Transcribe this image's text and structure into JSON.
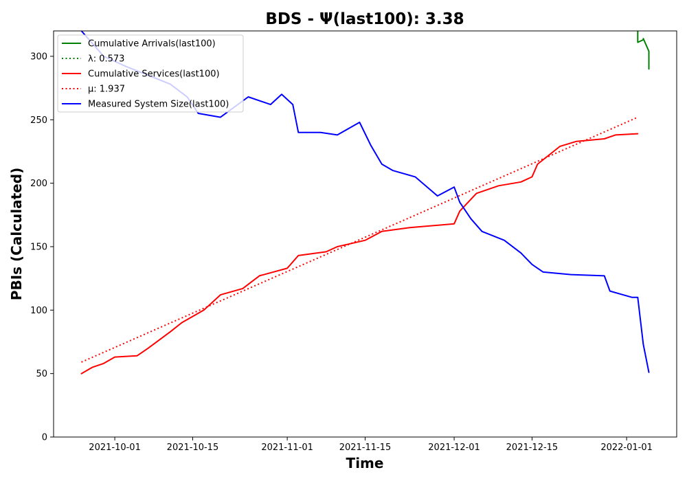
{
  "chart_data": {
    "type": "line",
    "title": "BDS -  Ψ(last100): 3.38",
    "xlabel": "Time",
    "ylabel": "PBIs (Calculated)",
    "ylim": [
      0,
      320
    ],
    "xlim": [
      "2021-09-20",
      "2022-01-10"
    ],
    "yticks": [
      0,
      50,
      100,
      150,
      200,
      250,
      300
    ],
    "xticks": [
      "2021-10-01",
      "2021-10-15",
      "2021-11-01",
      "2021-11-15",
      "2021-12-01",
      "2021-12-15",
      "2022-01-01"
    ],
    "grid": false,
    "legend_position": "top-left",
    "series": [
      {
        "name": "Cumulative Arrivals(last100)",
        "color": "#008000",
        "style": "solid",
        "x": [
          "2022-01-03",
          "2022-01-03",
          "2022-01-03",
          "2022-01-04",
          "2022-01-04",
          "2022-01-05",
          "2022-01-05",
          "2022-01-05"
        ],
        "y": [
          320,
          318,
          311,
          313,
          314,
          304,
          297,
          290
        ]
      },
      {
        "name": "λ: 0.573",
        "color": "#008000",
        "style": "dotted",
        "x": [],
        "y": []
      },
      {
        "name": "Cumulative Services(last100)",
        "color": "#ff0000",
        "style": "solid",
        "x": [
          "2021-09-25",
          "2021-09-27",
          "2021-09-29",
          "2021-10-01",
          "2021-10-05",
          "2021-10-07",
          "2021-10-11",
          "2021-10-13",
          "2021-10-17",
          "2021-10-20",
          "2021-10-24",
          "2021-10-27",
          "2021-11-01",
          "2021-11-03",
          "2021-11-08",
          "2021-11-10",
          "2021-11-15",
          "2021-11-18",
          "2021-11-23",
          "2021-12-01",
          "2021-12-02",
          "2021-12-05",
          "2021-12-09",
          "2021-12-13",
          "2021-12-15",
          "2021-12-16",
          "2021-12-20",
          "2021-12-23",
          "2021-12-28",
          "2021-12-30",
          "2022-01-03"
        ],
        "y": [
          50,
          55,
          58,
          63,
          64,
          70,
          83,
          90,
          100,
          112,
          117,
          127,
          133,
          143,
          146,
          150,
          155,
          162,
          165,
          168,
          178,
          192,
          198,
          201,
          205,
          215,
          229,
          233,
          235,
          238,
          239
        ]
      },
      {
        "name": "μ: 1.937",
        "color": "#ff0000",
        "style": "dotted",
        "x": [
          "2021-09-25",
          "2022-01-03"
        ],
        "y": [
          59,
          252
        ]
      },
      {
        "name": "Measured System Size(last100)",
        "color": "#0000ff",
        "style": "solid",
        "x": [
          "2021-09-25",
          "2021-09-29",
          "2021-10-03",
          "2021-10-07",
          "2021-10-11",
          "2021-10-14",
          "2021-10-16",
          "2021-10-20",
          "2021-10-25",
          "2021-10-29",
          "2021-10-31",
          "2021-11-02",
          "2021-11-03",
          "2021-11-07",
          "2021-11-10",
          "2021-11-14",
          "2021-11-16",
          "2021-11-18",
          "2021-11-20",
          "2021-11-24",
          "2021-11-28",
          "2021-12-01",
          "2021-12-02",
          "2021-12-04",
          "2021-12-06",
          "2021-12-10",
          "2021-12-13",
          "2021-12-15",
          "2021-12-17",
          "2021-12-22",
          "2021-12-28",
          "2021-12-29",
          "2022-01-02",
          "2022-01-03",
          "2022-01-04",
          "2022-01-05"
        ],
        "y": [
          320,
          300,
          292,
          285,
          278,
          268,
          255,
          252,
          268,
          262,
          270,
          262,
          240,
          240,
          238,
          248,
          230,
          215,
          210,
          205,
          190,
          197,
          185,
          172,
          162,
          155,
          145,
          136,
          130,
          128,
          127,
          115,
          110,
          110,
          73,
          51
        ]
      }
    ]
  }
}
